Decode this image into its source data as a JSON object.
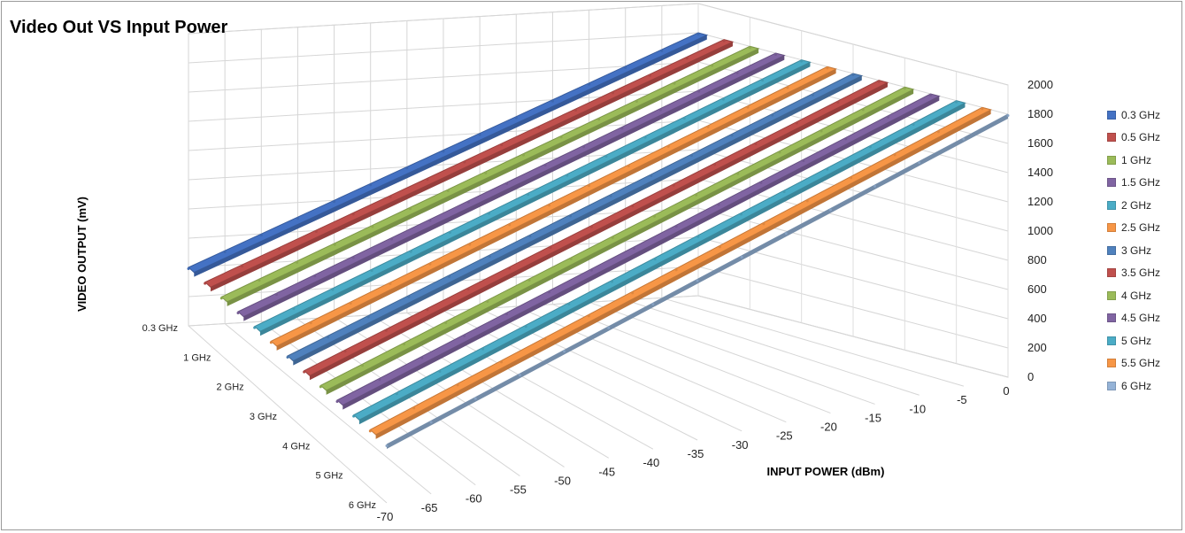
{
  "chart_data": {
    "type": "line",
    "title": "Video Out VS Input Power",
    "xlabel": "INPUT POWER (dBm)",
    "ylabel": "VIDEO OUTPUT (mV)",
    "zlabel": "",
    "x": [
      -70,
      -65,
      -60,
      -55,
      -50,
      -45,
      -40,
      -35,
      -30,
      -25,
      -20,
      -15,
      -10,
      -5,
      0
    ],
    "xlim": [
      -70,
      0
    ],
    "ylim": [
      0,
      2000
    ],
    "yticks": [
      0,
      200,
      400,
      600,
      800,
      1000,
      1200,
      1400,
      1600,
      1800,
      2000
    ],
    "series_axis_ticks": [
      "0.3 GHz",
      "1 GHz",
      "2 GHz",
      "3 GHz",
      "4 GHz",
      "5 GHz",
      "6 GHz"
    ],
    "grid": true,
    "legend_position": "right",
    "series": [
      {
        "name": "0.3 GHz",
        "color": "#4472C4",
        "values": [
          400,
          500,
          600,
          700,
          800,
          900,
          1000,
          1100,
          1200,
          1300,
          1400,
          1500,
          1600,
          1700,
          1800
        ]
      },
      {
        "name": "0.5 GHz",
        "color": "#C0504D",
        "values": [
          400,
          500,
          600,
          700,
          800,
          900,
          1000,
          1100,
          1200,
          1300,
          1400,
          1500,
          1600,
          1700,
          1800
        ]
      },
      {
        "name": "1 GHz",
        "color": "#9BBB59",
        "values": [
          400,
          500,
          600,
          700,
          800,
          900,
          1000,
          1100,
          1200,
          1300,
          1400,
          1500,
          1600,
          1700,
          1800
        ]
      },
      {
        "name": "1.5 GHz",
        "color": "#8064A2",
        "values": [
          400,
          500,
          600,
          700,
          800,
          900,
          1000,
          1100,
          1200,
          1300,
          1400,
          1500,
          1600,
          1700,
          1800
        ]
      },
      {
        "name": "2 GHz",
        "color": "#4BACC6",
        "values": [
          400,
          500,
          600,
          700,
          800,
          900,
          1000,
          1100,
          1200,
          1300,
          1400,
          1500,
          1600,
          1700,
          1800
        ]
      },
      {
        "name": "2.5 GHz",
        "color": "#F79646",
        "values": [
          400,
          500,
          600,
          700,
          800,
          900,
          1000,
          1100,
          1200,
          1300,
          1400,
          1500,
          1600,
          1700,
          1800
        ]
      },
      {
        "name": "3 GHz",
        "color": "#4F81BD",
        "values": [
          400,
          500,
          600,
          700,
          800,
          900,
          1000,
          1100,
          1200,
          1300,
          1400,
          1500,
          1600,
          1700,
          1800
        ]
      },
      {
        "name": "3.5 GHz",
        "color": "#C0504D",
        "values": [
          400,
          500,
          600,
          700,
          800,
          900,
          1000,
          1100,
          1200,
          1300,
          1400,
          1500,
          1600,
          1700,
          1800
        ]
      },
      {
        "name": "4 GHz",
        "color": "#9BBB59",
        "values": [
          400,
          500,
          600,
          700,
          800,
          900,
          1000,
          1100,
          1200,
          1300,
          1400,
          1500,
          1600,
          1700,
          1800
        ]
      },
      {
        "name": "4.5 GHz",
        "color": "#8064A2",
        "values": [
          400,
          500,
          600,
          700,
          800,
          900,
          1000,
          1100,
          1200,
          1300,
          1400,
          1500,
          1600,
          1700,
          1800
        ]
      },
      {
        "name": "5 GHz",
        "color": "#4BACC6",
        "values": [
          400,
          500,
          600,
          700,
          800,
          900,
          1000,
          1100,
          1200,
          1300,
          1400,
          1500,
          1600,
          1700,
          1800
        ]
      },
      {
        "name": "5.5 GHz",
        "color": "#F79646",
        "values": [
          400,
          500,
          600,
          700,
          800,
          900,
          1000,
          1100,
          1200,
          1300,
          1400,
          1500,
          1600,
          1700,
          1800
        ]
      },
      {
        "name": "6 GHz",
        "color": "#95B3D7",
        "values": [
          400,
          500,
          600,
          700,
          800,
          900,
          1000,
          1100,
          1200,
          1300,
          1400,
          1500,
          1600,
          1700,
          1800
        ]
      }
    ]
  }
}
